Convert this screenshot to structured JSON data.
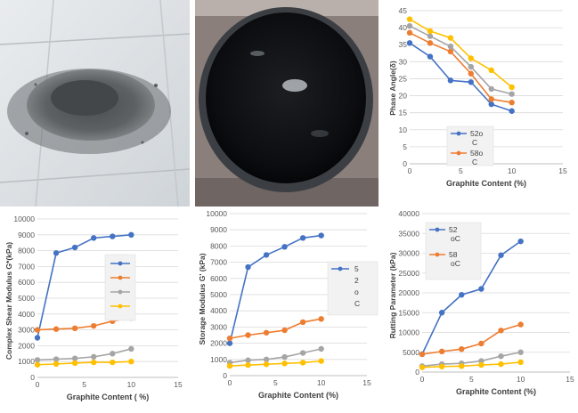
{
  "photos": [
    {
      "name": "graphite-powder-photo",
      "description_icon": "graphite-powder-photo"
    },
    {
      "name": "bitumen-container-photo",
      "description_icon": "bitumen-container-photo"
    }
  ],
  "colors": {
    "blue": "#4472c4",
    "orange": "#ed7d31",
    "gray": "#a5a5a5",
    "yellow": "#ffc000"
  },
  "chart_data": [
    {
      "id": "phase-angle",
      "type": "line",
      "title": "",
      "xlabel": "Graphite Content (%)",
      "ylabel": "Phase Angle(δ)",
      "xlim": [
        0,
        15
      ],
      "xticks": [
        0,
        5,
        10,
        15
      ],
      "ylim": [
        0,
        45
      ],
      "yticks": [
        0,
        5,
        10,
        15,
        20,
        25,
        30,
        35,
        40,
        45
      ],
      "legend_position": "bottom-center",
      "legend_lines": [
        [
          "52o",
          "C"
        ],
        [
          "58o",
          "C"
        ]
      ],
      "series": [
        {
          "name": "52oC",
          "color": "#4472c4",
          "x": [
            0,
            2,
            4,
            6,
            8,
            10
          ],
          "y": [
            35.5,
            31.5,
            24.5,
            24,
            17.5,
            15.5
          ]
        },
        {
          "name": "58oC",
          "color": "#ed7d31",
          "x": [
            0,
            2,
            4,
            6,
            8,
            10
          ],
          "y": [
            38.5,
            35.5,
            33,
            26.5,
            19,
            18
          ]
        },
        {
          "name": "",
          "color": "#a5a5a5",
          "x": [
            0,
            2,
            4,
            6,
            8,
            10
          ],
          "y": [
            40.5,
            37.5,
            34.5,
            28.5,
            22,
            20.5
          ]
        },
        {
          "name": "",
          "color": "#ffc000",
          "x": [
            0,
            2,
            4,
            6,
            8,
            10
          ],
          "y": [
            42.5,
            39,
            37,
            31,
            27.5,
            22.5
          ]
        }
      ]
    },
    {
      "id": "complex-shear-modulus",
      "type": "line",
      "title": "",
      "xlabel": "Graphite Content ( %)",
      "ylabel": "Complex Shear Modulus G*(kPa)",
      "xlim": [
        0,
        15
      ],
      "xticks": [
        0,
        5,
        10,
        15
      ],
      "ylim": [
        0,
        10000
      ],
      "yticks": [
        0,
        1000,
        2000,
        3000,
        4000,
        5000,
        6000,
        7000,
        8000,
        9000,
        10000
      ],
      "legend_position": "right",
      "legend_lines": [],
      "series": [
        {
          "name": "",
          "color": "#4472c4",
          "x": [
            0,
            2,
            4,
            6,
            8,
            10
          ],
          "y": [
            2500,
            7850,
            8200,
            8800,
            8900,
            9000
          ]
        },
        {
          "name": "",
          "color": "#ed7d31",
          "x": [
            0,
            2,
            4,
            6,
            8,
            10
          ],
          "y": [
            3000,
            3050,
            3100,
            3250,
            3550,
            3750
          ]
        },
        {
          "name": "",
          "color": "#a5a5a5",
          "x": [
            0,
            2,
            4,
            6,
            8,
            10
          ],
          "y": [
            1100,
            1150,
            1200,
            1300,
            1500,
            1800
          ]
        },
        {
          "name": "",
          "color": "#ffc000",
          "x": [
            0,
            2,
            4,
            6,
            8,
            10
          ],
          "y": [
            800,
            850,
            900,
            950,
            950,
            1000
          ]
        }
      ]
    },
    {
      "id": "storage-modulus",
      "type": "line",
      "title": "",
      "xlabel": "Graphite Content (%)",
      "ylabel": "Storage Modulus G' (kPa)",
      "xlim": [
        0,
        15
      ],
      "xticks": [
        0,
        5,
        10,
        15
      ],
      "ylim": [
        0,
        10000
      ],
      "yticks": [
        0,
        1000,
        2000,
        3000,
        4000,
        5000,
        6000,
        7000,
        8000,
        9000,
        10000
      ],
      "legend_position": "right",
      "legend_lines": [
        [
          "5"
        ],
        [
          "2"
        ],
        [
          "o"
        ],
        [
          "C"
        ]
      ],
      "series": [
        {
          "name": "52oC",
          "color": "#4472c4",
          "x": [
            0,
            2,
            4,
            6,
            8,
            10
          ],
          "y": [
            2000,
            6700,
            7450,
            7950,
            8500,
            8650
          ]
        },
        {
          "name": "",
          "color": "#ed7d31",
          "x": [
            0,
            2,
            4,
            6,
            8,
            10
          ],
          "y": [
            2300,
            2500,
            2650,
            2800,
            3300,
            3500
          ]
        },
        {
          "name": "",
          "color": "#a5a5a5",
          "x": [
            0,
            2,
            4,
            6,
            8,
            10
          ],
          "y": [
            800,
            950,
            1000,
            1150,
            1400,
            1650
          ]
        },
        {
          "name": "",
          "color": "#ffc000",
          "x": [
            0,
            2,
            4,
            6,
            8,
            10
          ],
          "y": [
            600,
            650,
            700,
            750,
            800,
            900
          ]
        }
      ]
    },
    {
      "id": "rutting-parameter",
      "type": "line",
      "title": "",
      "xlabel": "Graphite Content (%)",
      "ylabel": "Rutting Parameter (kPa)",
      "xlim": [
        0,
        15
      ],
      "xticks": [
        0,
        5,
        10,
        15
      ],
      "ylim": [
        0,
        40000
      ],
      "yticks": [
        0,
        5000,
        10000,
        15000,
        20000,
        25000,
        30000,
        35000,
        40000
      ],
      "legend_position": "top-left",
      "legend_lines": [
        [
          "52",
          "oC"
        ],
        [
          "58",
          "oC"
        ]
      ],
      "series": [
        {
          "name": "52oC",
          "color": "#4472c4",
          "x": [
            0,
            2,
            4,
            6,
            8,
            10
          ],
          "y": [
            4500,
            15000,
            19500,
            21000,
            29500,
            33000
          ]
        },
        {
          "name": "58oC",
          "color": "#ed7d31",
          "x": [
            0,
            2,
            4,
            6,
            8,
            10
          ],
          "y": [
            4500,
            5200,
            5800,
            7200,
            10500,
            12000
          ]
        },
        {
          "name": "",
          "color": "#a5a5a5",
          "x": [
            0,
            2,
            4,
            6,
            8,
            10
          ],
          "y": [
            1500,
            2000,
            2200,
            2800,
            4000,
            5000
          ]
        },
        {
          "name": "",
          "color": "#ffc000",
          "x": [
            0,
            2,
            4,
            6,
            8,
            10
          ],
          "y": [
            1200,
            1400,
            1500,
            1800,
            2000,
            2500
          ]
        }
      ]
    }
  ]
}
